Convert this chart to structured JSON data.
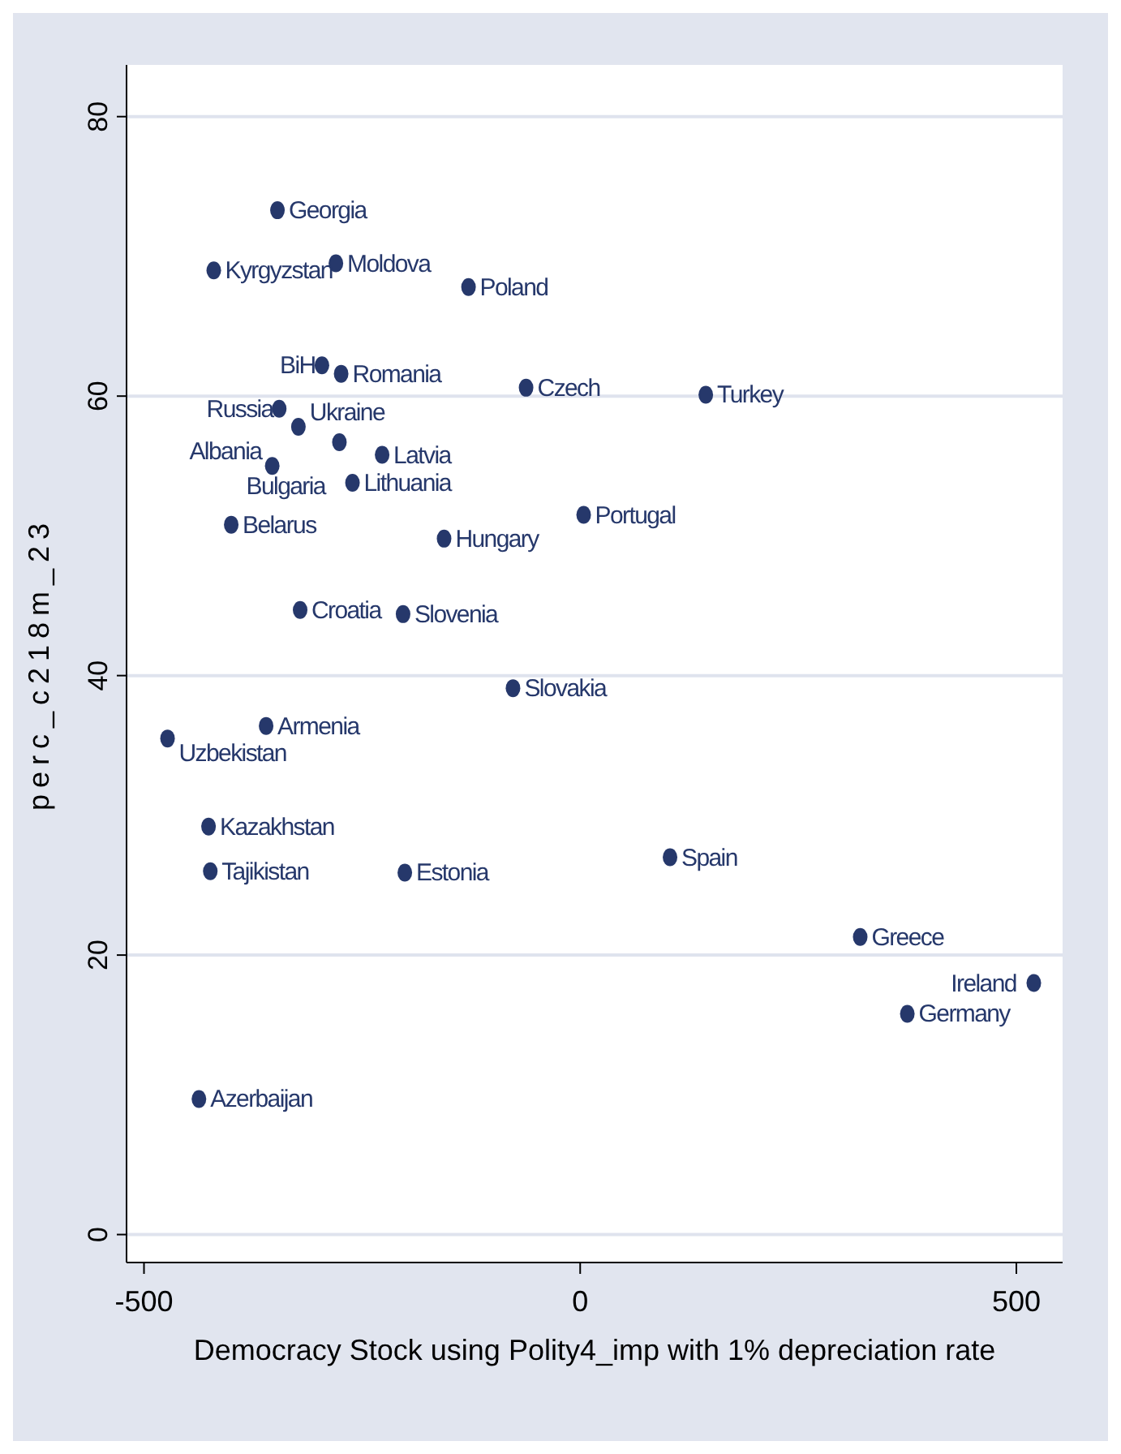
{
  "chart_data": {
    "type": "scatter",
    "xlabel": "Democracy Stock using Polity4_imp with 1% depreciation rate",
    "ylabel": "perc_c218m_23",
    "xlim": [
      -520,
      553
    ],
    "ylim": [
      -2,
      83.7
    ],
    "xticks": [
      -500,
      0,
      500
    ],
    "yticks": [
      0,
      20,
      40,
      60,
      80
    ],
    "grid": "y",
    "marker": "circle",
    "series": [
      {
        "color": "#26386b",
        "x": [
          -347,
          -420,
          -280,
          -128,
          -296,
          -274,
          -62,
          144,
          -345,
          -323,
          -276,
          -227,
          -353,
          -261,
          -400,
          4,
          -156,
          -321,
          -203,
          -77,
          -360,
          -473,
          -426,
          -424,
          -201,
          103,
          321,
          375,
          520,
          -437
        ],
        "values": [
          73.3,
          69.0,
          69.5,
          67.8,
          62.2,
          61.6,
          60.6,
          60.1,
          59.1,
          57.8,
          56.7,
          55.8,
          55.0,
          53.8,
          50.8,
          51.5,
          49.8,
          44.7,
          44.4,
          39.1,
          36.4,
          35.5,
          29.2,
          26.0,
          25.9,
          27.0,
          21.3,
          15.8,
          18.0,
          9.7
        ]
      }
    ],
    "annotations": [
      {
        "text": "Georgia",
        "x": -347,
        "y": 73.3
      },
      {
        "text": "Kyrgyzstan",
        "x": -420,
        "y": 69.0
      },
      {
        "text": "Moldova",
        "x": -280,
        "y": 69.5
      },
      {
        "text": "Poland",
        "x": -128,
        "y": 67.8
      },
      {
        "text": "BiH",
        "x": -296,
        "y": 62.2
      },
      {
        "text": "Romania",
        "x": -274,
        "y": 61.6
      },
      {
        "text": "Czech",
        "x": -62,
        "y": 60.6
      },
      {
        "text": "Turkey",
        "x": 144,
        "y": 60.1
      },
      {
        "text": "Russia",
        "x": -345,
        "y": 59.1
      },
      {
        "text": "Ukraine",
        "x": -323,
        "y": 57.8
      },
      {
        "text": "Bulgaria",
        "x": -276,
        "y": 56.7
      },
      {
        "text": "Latvia",
        "x": -227,
        "y": 55.8
      },
      {
        "text": "Albania",
        "x": -353,
        "y": 55.0
      },
      {
        "text": "Lithuania",
        "x": -261,
        "y": 53.8
      },
      {
        "text": "Belarus",
        "x": -400,
        "y": 50.8
      },
      {
        "text": "Portugal",
        "x": 4,
        "y": 51.5
      },
      {
        "text": "Hungary",
        "x": -156,
        "y": 49.8
      },
      {
        "text": "Croatia",
        "x": -321,
        "y": 44.7
      },
      {
        "text": "Slovenia",
        "x": -203,
        "y": 44.4
      },
      {
        "text": "Slovakia",
        "x": -77,
        "y": 39.1
      },
      {
        "text": "Armenia",
        "x": -360,
        "y": 36.4
      },
      {
        "text": "Uzbekistan",
        "x": -473,
        "y": 35.5
      },
      {
        "text": "Kazakhstan",
        "x": -426,
        "y": 29.2
      },
      {
        "text": "Tajikistan",
        "x": -424,
        "y": 26.0
      },
      {
        "text": "Estonia",
        "x": -201,
        "y": 25.9
      },
      {
        "text": "Spain",
        "x": 103,
        "y": 27.0
      },
      {
        "text": "Greece",
        "x": 321,
        "y": 21.3
      },
      {
        "text": "Germany",
        "x": 375,
        "y": 15.8
      },
      {
        "text": "Ireland",
        "x": 520,
        "y": 18.0
      },
      {
        "text": "Azerbaijan",
        "x": -437,
        "y": 9.7
      }
    ]
  }
}
